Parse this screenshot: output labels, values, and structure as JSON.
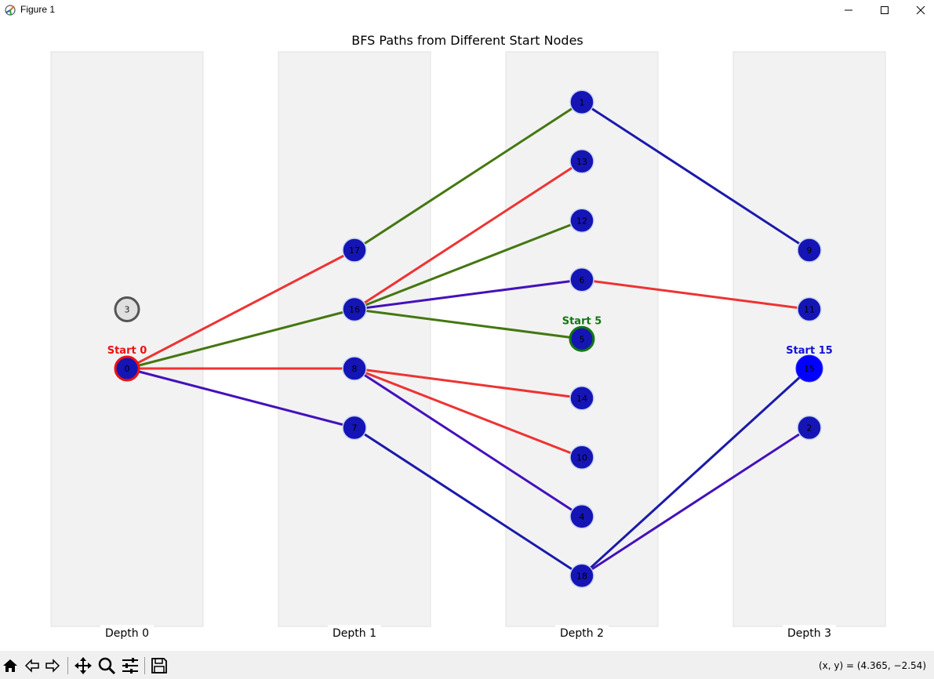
{
  "window": {
    "title": "Figure 1"
  },
  "toolbar": {
    "buttons": [
      {
        "name": "home-icon"
      },
      {
        "name": "back-icon"
      },
      {
        "name": "forward-icon"
      },
      {
        "name": "pan-icon"
      },
      {
        "name": "zoom-icon"
      },
      {
        "name": "configure-subplots-icon"
      },
      {
        "name": "save-icon"
      }
    ],
    "coords": "(x, y) = (4.365, −2.54)"
  },
  "chart_data": {
    "type": "network",
    "title": "BFS Paths from Different Start Nodes",
    "depth_labels": [
      "Depth 0",
      "Depth 1",
      "Depth 2",
      "Depth 3"
    ],
    "colors": {
      "start0": "#ee3333",
      "start5": "#447711",
      "start15": "#1a1aaa",
      "mixed": "#4411bb",
      "node": "#1515b5",
      "unreached": "#e0e0e0",
      "band": "#f2f2f2"
    },
    "nodes": [
      {
        "id": "0",
        "depth": 0,
        "y": 0
      },
      {
        "id": "3",
        "depth": 0,
        "y": 1,
        "unreached": true
      },
      {
        "id": "17",
        "depth": 1,
        "y": 2
      },
      {
        "id": "16",
        "depth": 1,
        "y": 1
      },
      {
        "id": "8",
        "depth": 1,
        "y": 0
      },
      {
        "id": "7",
        "depth": 1,
        "y": -1
      },
      {
        "id": "1",
        "depth": 2,
        "y": 4.5
      },
      {
        "id": "13",
        "depth": 2,
        "y": 3.5
      },
      {
        "id": "12",
        "depth": 2,
        "y": 2.5
      },
      {
        "id": "6",
        "depth": 2,
        "y": 1.5
      },
      {
        "id": "5",
        "depth": 2,
        "y": 0.5
      },
      {
        "id": "14",
        "depth": 2,
        "y": -0.5
      },
      {
        "id": "10",
        "depth": 2,
        "y": -1.5
      },
      {
        "id": "4",
        "depth": 2,
        "y": -2.5
      },
      {
        "id": "18",
        "depth": 2,
        "y": -3.5
      },
      {
        "id": "9",
        "depth": 3,
        "y": 2
      },
      {
        "id": "11",
        "depth": 3,
        "y": 1
      },
      {
        "id": "15",
        "depth": 3,
        "y": 0
      },
      {
        "id": "2",
        "depth": 3,
        "y": -1
      }
    ],
    "edges": [
      {
        "from": "0",
        "to": "17",
        "color": "start0"
      },
      {
        "from": "0",
        "to": "16",
        "color": "start5"
      },
      {
        "from": "0",
        "to": "8",
        "color": "start0"
      },
      {
        "from": "0",
        "to": "7",
        "color": "mixed"
      },
      {
        "from": "17",
        "to": "1",
        "color": "start5"
      },
      {
        "from": "16",
        "to": "13",
        "color": "start0"
      },
      {
        "from": "16",
        "to": "12",
        "color": "start5"
      },
      {
        "from": "16",
        "to": "6",
        "color": "mixed"
      },
      {
        "from": "16",
        "to": "5",
        "color": "start5"
      },
      {
        "from": "8",
        "to": "14",
        "color": "start0"
      },
      {
        "from": "8",
        "to": "10",
        "color": "start0"
      },
      {
        "from": "8",
        "to": "4",
        "color": "mixed"
      },
      {
        "from": "7",
        "to": "18",
        "color": "start15"
      },
      {
        "from": "1",
        "to": "9",
        "color": "start15"
      },
      {
        "from": "6",
        "to": "11",
        "color": "start0"
      },
      {
        "from": "18",
        "to": "15",
        "color": "start15"
      },
      {
        "from": "18",
        "to": "2",
        "color": "mixed"
      }
    ],
    "starts": [
      {
        "node": "0",
        "label": "Start 0",
        "color": "#ee1111",
        "ring": "#ee1111"
      },
      {
        "node": "5",
        "label": "Start 5",
        "color": "#117711",
        "ring": "#117711"
      },
      {
        "node": "15",
        "label": "Start 15",
        "color": "#1111dd",
        "ring": "#0000ff"
      }
    ]
  }
}
